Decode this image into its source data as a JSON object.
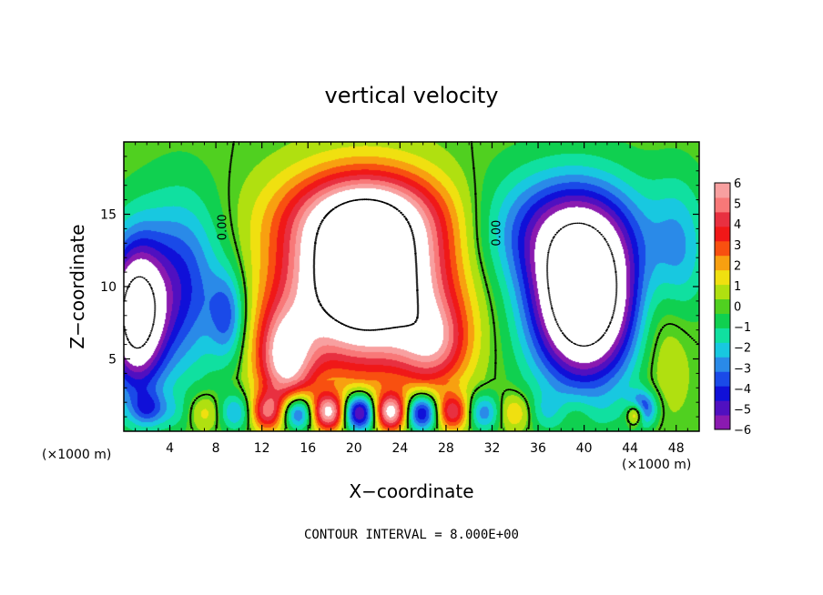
{
  "chart_data": {
    "type": "heatmap",
    "title": "vertical velocity",
    "xlabel": "X−coordinate",
    "ylabel": "Z−coordinate",
    "x_unit_label": "(×1000 m)",
    "z_unit_label": "(×1000 m)",
    "footer": "CONTOUR INTERVAL = 8.000E+00",
    "xlim": [
      0,
      50
    ],
    "ylim": [
      0,
      20
    ],
    "x_ticks": [
      4,
      8,
      12,
      16,
      20,
      24,
      28,
      32,
      36,
      40,
      44,
      48
    ],
    "x_tick_labels": [
      "4",
      "8",
      "12",
      "16",
      "20",
      "24",
      "28",
      "32",
      "36",
      "40",
      "44",
      "48"
    ],
    "y_ticks": [
      5,
      10,
      15
    ],
    "y_tick_labels": [
      "5",
      "10",
      "15"
    ],
    "colorbar": {
      "min": -6,
      "max": 6,
      "ticks": [
        6,
        5,
        4,
        3,
        2,
        1,
        0,
        -1,
        -2,
        -3,
        -4,
        -5,
        -6
      ],
      "tick_labels": [
        "6",
        "5",
        "4",
        "3",
        "2",
        "1",
        "0",
        "−1",
        "−2",
        "−3",
        "−4",
        "−5",
        "−6"
      ],
      "colors": [
        "#8a1ab0",
        "#5010c0",
        "#1010d8",
        "#1a4ae8",
        "#2a8ae8",
        "#18c8e0",
        "#10e0a0",
        "#10d050",
        "#50d020",
        "#b0e010",
        "#f0e010",
        "#f8a010",
        "#f85010",
        "#f01818",
        "#e83040",
        "#f87878",
        "#f8a0a0"
      ]
    },
    "contour_labels": [
      "0.00",
      "0.00"
    ],
    "features": [
      {
        "kind": "updraft",
        "x": 21,
        "z": 10,
        "peak": 12
      },
      {
        "kind": "updraft",
        "x": 13.5,
        "z": 5,
        "peak": 9
      },
      {
        "kind": "downdraft",
        "x": 40,
        "z": 9,
        "peak": -11
      },
      {
        "kind": "downdraft",
        "x": 1,
        "z": 8,
        "peak": -9
      }
    ]
  }
}
